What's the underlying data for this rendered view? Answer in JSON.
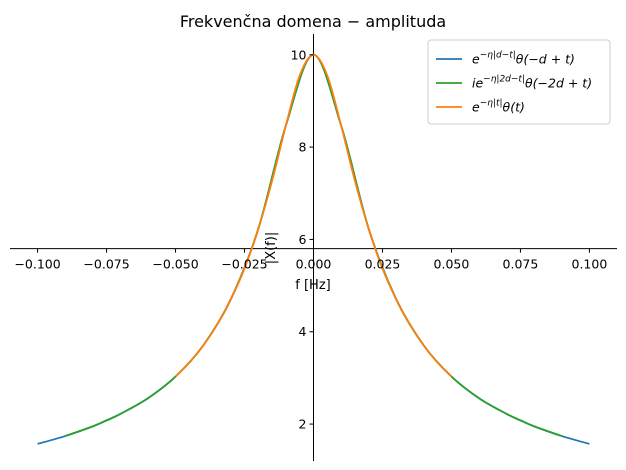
{
  "chart_data": {
    "type": "line",
    "title": "Frekvenčna domena − amplituda",
    "xlabel": "f [Hz]",
    "ylabel": "|X(f)|",
    "xlim": [
      -0.11,
      0.11
    ],
    "ylim": [
      1.2,
      10.45
    ],
    "xticks": [
      -0.1,
      -0.075,
      -0.05,
      -0.025,
      0.0,
      0.025,
      0.05,
      0.075,
      0.1
    ],
    "xtick_labels": [
      "−0.100",
      "−0.075",
      "−0.050",
      "−0.025",
      "0.000",
      "0.025",
      "0.050",
      "0.075",
      "0.100"
    ],
    "yticks": [
      2,
      4,
      6,
      8,
      10
    ],
    "ytick_labels": [
      "2",
      "4",
      "6",
      "8",
      "10"
    ],
    "x_axis_crosses_y_at": 5.8,
    "grid": false,
    "legend_position": "top-right",
    "series": [
      {
        "name": "e^{−η|d−t|}θ(−d+t)",
        "color": "#1f77b4",
        "x": [
          -0.1,
          -0.09,
          -0.08,
          -0.075,
          -0.07,
          -0.06,
          -0.05,
          -0.04,
          -0.03,
          -0.02,
          -0.01,
          0.0,
          0.01,
          0.02,
          0.03,
          0.04,
          0.05,
          0.06,
          0.07,
          0.075,
          0.08,
          0.09,
          0.1
        ],
        "y": [
          1.57,
          1.74,
          1.95,
          2.08,
          2.22,
          2.56,
          3.03,
          3.7,
          4.7,
          6.23,
          8.47,
          10.0,
          8.47,
          6.23,
          4.7,
          3.7,
          3.03,
          2.56,
          2.22,
          2.08,
          1.95,
          1.74,
          1.57
        ]
      },
      {
        "name": "ie^{−η|2d−t|}θ(−2d+t)",
        "color": "#2ca02c",
        "x": [
          -0.09,
          -0.08,
          -0.075,
          -0.07,
          -0.06,
          -0.05,
          -0.04,
          -0.03,
          -0.02,
          -0.01,
          0.0,
          0.01,
          0.02,
          0.03,
          0.04,
          0.05,
          0.06,
          0.07,
          0.075,
          0.08,
          0.09
        ],
        "y": [
          1.74,
          1.95,
          2.08,
          2.22,
          2.56,
          3.03,
          3.7,
          4.7,
          6.23,
          8.47,
          10.0,
          8.47,
          6.23,
          4.7,
          3.7,
          3.03,
          2.56,
          2.22,
          2.08,
          1.95,
          1.74
        ]
      },
      {
        "name": "e^{−η|t|}θ(t)",
        "color": "#ff7f0e",
        "x": [
          -0.05,
          -0.045,
          -0.04,
          -0.035,
          -0.03,
          -0.025,
          -0.02,
          -0.015,
          -0.01,
          -0.005,
          0.0,
          0.005,
          0.01,
          0.015,
          0.02,
          0.025,
          0.03,
          0.035,
          0.04,
          0.045,
          0.05
        ],
        "y": [
          3.03,
          3.33,
          3.7,
          4.15,
          4.7,
          5.37,
          6.23,
          7.27,
          8.47,
          9.55,
          10.0,
          9.55,
          8.47,
          7.27,
          6.23,
          5.37,
          4.7,
          4.15,
          3.7,
          3.33,
          3.03
        ]
      }
    ],
    "legend": [
      {
        "label": "e",
        "sup": "−η|d−t|",
        "rest": "θ(−d + t)",
        "color": "#1f77b4"
      },
      {
        "label": "ie",
        "sup": "−η|2d−t|",
        "rest": "θ(−2d + t)",
        "color": "#2ca02c"
      },
      {
        "label": "e",
        "sup": "−η|t|",
        "rest": "θ(t)",
        "color": "#ff7f0e"
      }
    ]
  }
}
